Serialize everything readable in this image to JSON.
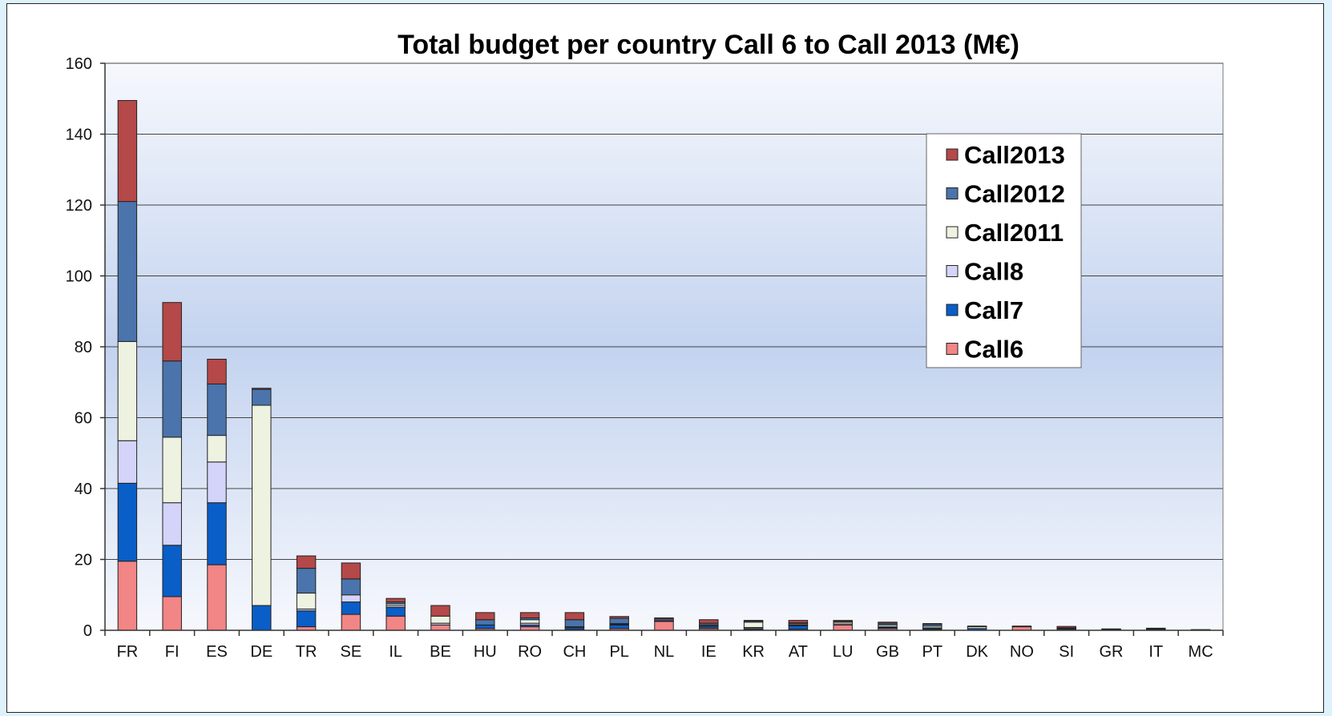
{
  "chart_data": {
    "type": "bar",
    "stacked": true,
    "title": "Total budget per country Call 6 to Call 2013 (M€)",
    "xlabel": "",
    "ylabel": "",
    "ylim": [
      0,
      160
    ],
    "yticks": [
      0,
      20,
      40,
      60,
      80,
      100,
      120,
      140,
      160
    ],
    "grid": true,
    "legend_position": "top-right",
    "categories": [
      "FR",
      "FI",
      "ES",
      "DE",
      "TR",
      "SE",
      "IL",
      "BE",
      "HU",
      "RO",
      "CH",
      "PL",
      "NL",
      "IE",
      "KR",
      "AT",
      "LU",
      "GB",
      "PT",
      "DK",
      "NO",
      "SI",
      "GR",
      "IT",
      "MC"
    ],
    "series": [
      {
        "name": "Call6",
        "color": "#f28585",
        "values": [
          19.5,
          9.5,
          18.5,
          0,
          1,
          4.5,
          4,
          1.5,
          0.5,
          1,
          0.3,
          0.5,
          2.5,
          0.5,
          0.2,
          0.3,
          1.5,
          0.5,
          0.2,
          0,
          1,
          0.3,
          0,
          0,
          0
        ]
      },
      {
        "name": "Call7",
        "color": "#0a5ec7",
        "values": [
          22,
          14.5,
          17.5,
          7,
          4.5,
          3.5,
          2.5,
          0,
          1,
          0.5,
          0.5,
          1,
          0.2,
          0.5,
          0.3,
          1,
          0,
          0.3,
          0.3,
          0.5,
          0,
          0.2,
          0.3,
          0.3,
          0.1
        ]
      },
      {
        "name": "Call8",
        "color": "#d4d4fa",
        "values": [
          12,
          12,
          11.5,
          0,
          0.5,
          2,
          0.5,
          0.5,
          0,
          0.5,
          0.2,
          0.2,
          0,
          0.3,
          0.3,
          0.2,
          0.3,
          0.2,
          0.2,
          0,
          0,
          0.2,
          0,
          0,
          0
        ]
      },
      {
        "name": "Call2011",
        "color": "#eef2e0",
        "values": [
          28,
          18.5,
          7.5,
          56.5,
          4.5,
          0,
          0.5,
          2,
          0,
          1,
          0,
          0.2,
          0,
          0.2,
          1.5,
          0.3,
          0.5,
          0.5,
          0.5,
          0.5,
          0,
          0,
          0,
          0,
          0
        ]
      },
      {
        "name": "Call2012",
        "color": "#4a74ab",
        "values": [
          39.5,
          21.5,
          14.5,
          4.5,
          7,
          4.5,
          0.5,
          0,
          1.5,
          0.5,
          2,
          1.5,
          0.5,
          0.5,
          0.3,
          0.3,
          0.2,
          0.5,
          0.5,
          0.2,
          0,
          0,
          0,
          0.2,
          0.1
        ]
      },
      {
        "name": "Call2013",
        "color": "#b54848",
        "values": [
          28.5,
          16.5,
          7,
          0.3,
          3.5,
          4.5,
          1,
          3,
          2,
          1.5,
          2,
          0.5,
          0.3,
          1,
          0.2,
          0.7,
          0.3,
          0.3,
          0.2,
          0,
          0.2,
          0.4,
          0.1,
          0.1,
          0
        ]
      }
    ]
  }
}
